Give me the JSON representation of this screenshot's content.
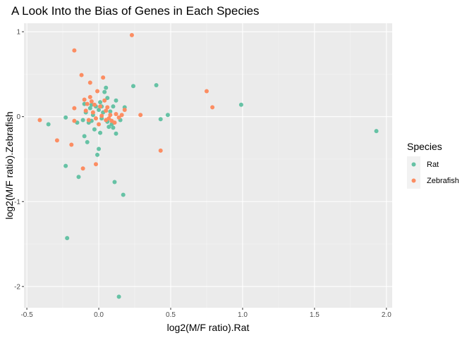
{
  "chart_data": {
    "type": "scatter",
    "title": "A Look Into the Bias of Genes in Each Species",
    "xlabel": "log2(M/F ratio).Rat",
    "ylabel": "log2(M/F ratio).Zebrafish",
    "xlim": [
      -0.52,
      2.04
    ],
    "ylim": [
      -2.25,
      1.1
    ],
    "x_ticks": [
      -0.5,
      0.0,
      0.5,
      1.0,
      1.5,
      2.0
    ],
    "x_tick_labels": [
      "-0.5",
      "0.0",
      "0.5",
      "1.0",
      "1.5",
      "2.0"
    ],
    "y_ticks": [
      -2,
      -1,
      0,
      1
    ],
    "y_tick_labels": [
      "-2",
      "-1",
      "0",
      "1"
    ],
    "grid": true,
    "legend": {
      "title": "Species",
      "placement": "right"
    },
    "series": [
      {
        "name": "Rat",
        "color": "#66c2a5",
        "points": [
          [
            -0.35,
            -0.09
          ],
          [
            -0.23,
            -0.01
          ],
          [
            -0.23,
            -0.58
          ],
          [
            -0.22,
            -1.43
          ],
          [
            -0.15,
            -0.07
          ],
          [
            -0.14,
            -0.71
          ],
          [
            -0.11,
            -0.04
          ],
          [
            -0.1,
            -0.23
          ],
          [
            -0.1,
            0.15
          ],
          [
            -0.09,
            0.05
          ],
          [
            -0.08,
            -0.3
          ],
          [
            -0.07,
            -0.07
          ],
          [
            -0.06,
            0.1
          ],
          [
            -0.05,
            -0.05
          ],
          [
            -0.04,
            0.02
          ],
          [
            -0.03,
            -0.15
          ],
          [
            -0.02,
            0.12
          ],
          [
            -0.01,
            -0.45
          ],
          [
            0.0,
            0.08
          ],
          [
            0.0,
            -0.38
          ],
          [
            0.01,
            -0.19
          ],
          [
            0.01,
            0.17
          ],
          [
            0.02,
            -0.02
          ],
          [
            0.03,
            0.05
          ],
          [
            0.04,
            0.29
          ],
          [
            0.05,
            0.34
          ],
          [
            0.06,
            0.22
          ],
          [
            0.06,
            -0.06
          ],
          [
            0.07,
            -0.12
          ],
          [
            0.08,
            0.06
          ],
          [
            0.09,
            -0.09
          ],
          [
            0.1,
            0.12
          ],
          [
            0.1,
            -0.13
          ],
          [
            0.11,
            -0.77
          ],
          [
            0.12,
            0.19
          ],
          [
            0.12,
            -0.2
          ],
          [
            0.14,
            -2.12
          ],
          [
            0.15,
            -0.04
          ],
          [
            0.17,
            -0.92
          ],
          [
            0.18,
            0.11
          ],
          [
            0.24,
            0.36
          ],
          [
            0.4,
            0.37
          ],
          [
            0.43,
            -0.03
          ],
          [
            0.48,
            0.02
          ],
          [
            0.99,
            0.14
          ],
          [
            1.93,
            -0.17
          ],
          [
            0.02,
            0.12
          ],
          [
            -0.05,
            0.14
          ]
        ]
      },
      {
        "name": "Zebrafish",
        "color": "#fc8d62",
        "points": [
          [
            -0.41,
            -0.04
          ],
          [
            -0.29,
            -0.28
          ],
          [
            -0.19,
            -0.33
          ],
          [
            -0.17,
            -0.05
          ],
          [
            -0.17,
            0.1
          ],
          [
            -0.17,
            0.78
          ],
          [
            -0.12,
            0.49
          ],
          [
            -0.11,
            -0.61
          ],
          [
            -0.1,
            0.2
          ],
          [
            -0.09,
            0.07
          ],
          [
            -0.07,
            -0.04
          ],
          [
            -0.06,
            0.4
          ],
          [
            -0.06,
            0.23
          ],
          [
            -0.05,
            0.18
          ],
          [
            -0.04,
            0.05
          ],
          [
            -0.03,
            0.14
          ],
          [
            -0.02,
            -0.02
          ],
          [
            -0.02,
            -0.56
          ],
          [
            -0.01,
            0.3
          ],
          [
            0.0,
            -0.09
          ],
          [
            0.01,
            0.12
          ],
          [
            0.02,
            0.01
          ],
          [
            0.03,
            0.46
          ],
          [
            0.04,
            0.19
          ],
          [
            0.05,
            -0.04
          ],
          [
            0.06,
            0.11
          ],
          [
            0.07,
            -0.02
          ],
          [
            0.08,
            0.02
          ],
          [
            0.09,
            -0.05
          ],
          [
            0.11,
            -0.07
          ],
          [
            0.12,
            0.03
          ],
          [
            0.14,
            -0.01
          ],
          [
            0.16,
            0.02
          ],
          [
            0.18,
            0.08
          ],
          [
            0.23,
            0.96
          ],
          [
            0.29,
            0.02
          ],
          [
            0.43,
            -0.4
          ],
          [
            0.75,
            0.3
          ],
          [
            0.79,
            0.11
          ],
          [
            -0.08,
            0.15
          ],
          [
            0.05,
            0.07
          ]
        ]
      }
    ]
  }
}
